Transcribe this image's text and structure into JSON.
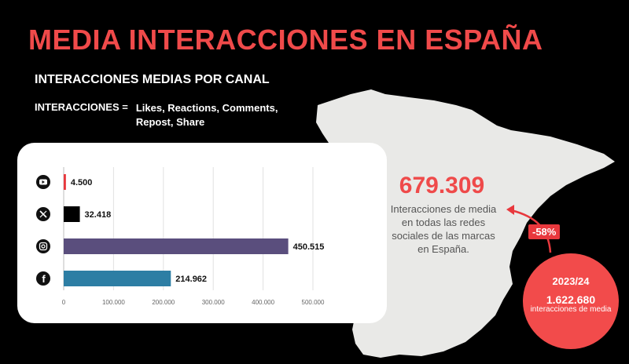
{
  "header": {
    "title": "MEDIA INTERACCIONES EN ESPAÑA",
    "subtitle": "INTERACCIONES MEDIAS POR CANAL",
    "formula_label": "INTERACCIONES =",
    "formula_terms": "Likes, Reactions, Comments, Repost, Share"
  },
  "summary": {
    "total": "679.309",
    "caption": "Interacciones de media en todas las redes sociales de las marcas en España.",
    "change": "-58%",
    "previous_period": "2023/24",
    "previous_total": "1.622.680",
    "previous_caption": "interacciones de media"
  },
  "colors": {
    "accent": "#f04a4a",
    "map": "#e9e9e7"
  },
  "chart_data": {
    "type": "bar",
    "orientation": "horizontal",
    "categories": [
      "youtube-icon",
      "x-icon",
      "instagram-icon",
      "facebook-icon"
    ],
    "values": [
      4500,
      32418,
      450515,
      214962
    ],
    "value_labels": [
      "4.500",
      "32.418",
      "450.515",
      "214.962"
    ],
    "colors": [
      "#e8383d",
      "#000000",
      "#5a4e7d",
      "#2d7ea4"
    ],
    "xlim": [
      0,
      500000
    ],
    "ticks": [
      0,
      100000,
      200000,
      300000,
      400000,
      500000
    ],
    "tick_labels": [
      "0",
      "100.000",
      "200.000",
      "300.000",
      "400.000",
      "500.000"
    ],
    "grid": true
  }
}
